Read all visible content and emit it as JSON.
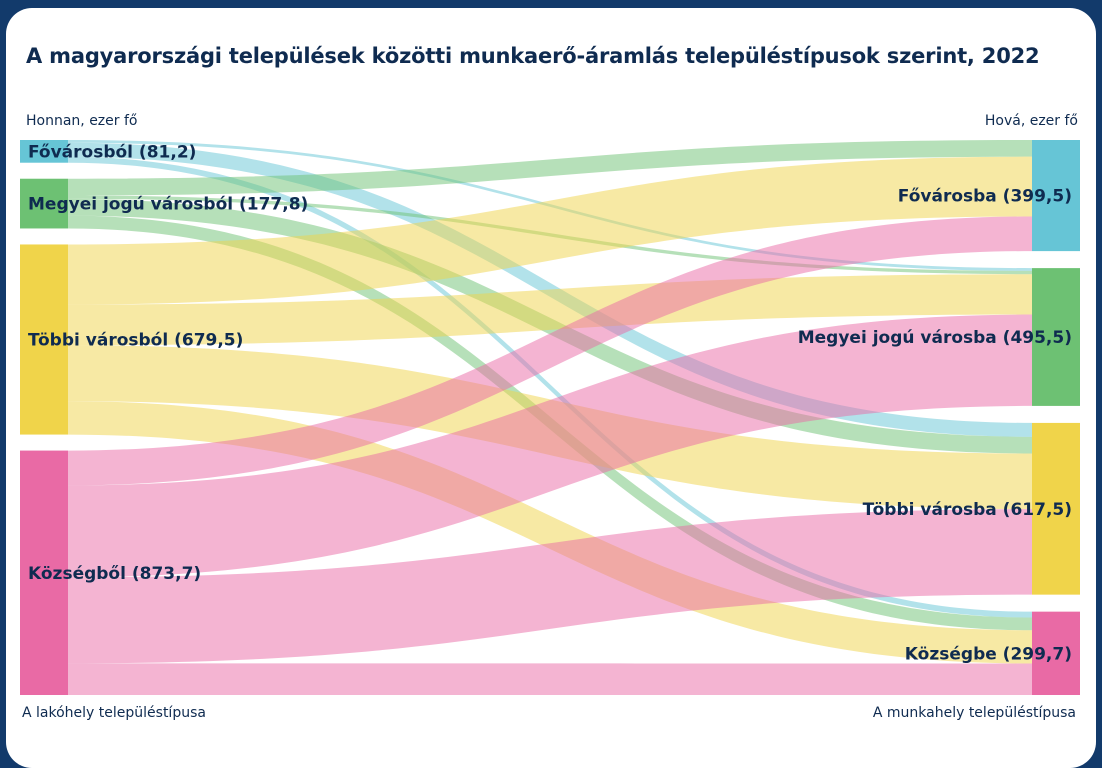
{
  "chart_data": {
    "type": "sankey",
    "title": "A magyarországi települések közötti munkaerő-áramlás településtípusok szerint, 2022",
    "source_header": "Honnan, ezer fő",
    "target_header": "Hová, ezer fő",
    "source_axis_label": "A lakóhely településtípusa",
    "target_axis_label": "A munkahely településtípusa",
    "sources": [
      {
        "id": "fov",
        "label": "Fővárosból (81,2)",
        "value": 81.2,
        "color": "#66c5d6"
      },
      {
        "id": "mjv",
        "label": "Megyei jogú városból (177,8)",
        "value": 177.8,
        "color": "#6dc173"
      },
      {
        "id": "tov",
        "label": "Többi városból (679,5)",
        "value": 679.5,
        "color": "#f0d44a"
      },
      {
        "id": "koz",
        "label": "Községből (873,7)",
        "value": 873.7,
        "color": "#e96aa5"
      }
    ],
    "targets": [
      {
        "id": "fov",
        "label": "Fővárosba (399,5)",
        "value": 399.5,
        "color": "#66c5d6"
      },
      {
        "id": "mjv",
        "label": "Megyei jogú városba (495,5)",
        "value": 495.5,
        "color": "#6dc173"
      },
      {
        "id": "tov",
        "label": "Többi városba (617,5)",
        "value": 617.5,
        "color": "#f0d44a"
      },
      {
        "id": "koz",
        "label": "Községbe (299,7)",
        "value": 299.7,
        "color": "#e96aa5"
      }
    ],
    "flows": [
      {
        "source": "fov",
        "target": "mjv",
        "value": 10
      },
      {
        "source": "fov",
        "target": "tov",
        "value": 50
      },
      {
        "source": "fov",
        "target": "koz",
        "value": 21.2
      },
      {
        "source": "mjv",
        "target": "fov",
        "value": 60
      },
      {
        "source": "mjv",
        "target": "mjv",
        "value": 12
      },
      {
        "source": "mjv",
        "target": "tov",
        "value": 60
      },
      {
        "source": "mjv",
        "target": "koz",
        "value": 45.8
      },
      {
        "source": "tov",
        "target": "fov",
        "value": 215
      },
      {
        "source": "tov",
        "target": "mjv",
        "value": 145
      },
      {
        "source": "tov",
        "target": "tov",
        "value": 200
      },
      {
        "source": "tov",
        "target": "koz",
        "value": 119.5
      },
      {
        "source": "koz",
        "target": "fov",
        "value": 124.5
      },
      {
        "source": "koz",
        "target": "mjv",
        "value": 328.5
      },
      {
        "source": "koz",
        "target": "tov",
        "value": 307.5
      },
      {
        "source": "koz",
        "target": "koz",
        "value": 113.2
      }
    ]
  }
}
